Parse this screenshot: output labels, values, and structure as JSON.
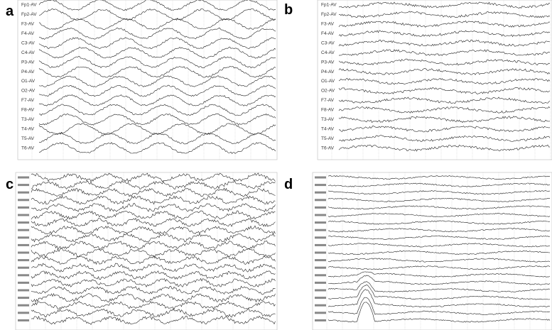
{
  "panels": [
    {
      "label": "a",
      "channels": [
        "Fp1-AV",
        "Fp2-AV",
        "F3-AV",
        "F4-AV",
        "C3-AV",
        "C4-AV",
        "P3-AV",
        "P4-AV",
        "O1-AV",
        "O2-AV",
        "F7-AV",
        "F8-AV",
        "T3-AV",
        "T4-AV",
        "T5-AV",
        "T6-AV"
      ]
    },
    {
      "label": "b",
      "channels": [
        "Fp1-AV",
        "Fp2-AV",
        "F3-AV",
        "F4-AV",
        "C3-AV",
        "C4-AV",
        "P3-AV",
        "P4-AV",
        "O1-AV",
        "O2-AV",
        "F7-AV",
        "F8-AV",
        "T3-AV",
        "T4-AV",
        "T5-AV",
        "T6-AV"
      ]
    },
    {
      "label": "c"
    },
    {
      "label": "d"
    }
  ]
}
